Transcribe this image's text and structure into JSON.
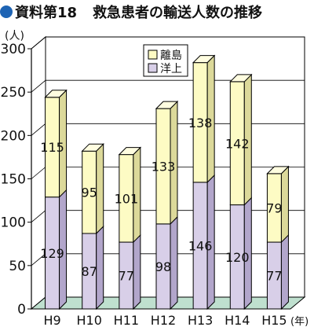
{
  "header": {
    "bullet_color": "#1e64b4",
    "label": "資料第18",
    "title": "救急患者の輸送人数の推移"
  },
  "colors": {
    "upper": "#fdfbc4",
    "lower": "#d8cfe8",
    "floor": "#bfe0cf",
    "stroke": "#000000"
  },
  "chart_data": {
    "type": "bar",
    "stacked": true,
    "style": "3d",
    "categories": [
      "H9",
      "H10",
      "H11",
      "H12",
      "H13",
      "H14",
      "H15"
    ],
    "series": [
      {
        "name": "洋上",
        "values": [
          129,
          87,
          77,
          98,
          146,
          120,
          77
        ]
      },
      {
        "name": "離島",
        "values": [
          115,
          95,
          101,
          133,
          138,
          142,
          79
        ]
      }
    ],
    "ylabel": "(人)",
    "x_unit": "(年)",
    "ylim": [
      0,
      300
    ],
    "yticks": [
      0,
      50,
      100,
      150,
      200,
      250,
      300
    ],
    "grid": true,
    "legend_position": "top-center"
  }
}
